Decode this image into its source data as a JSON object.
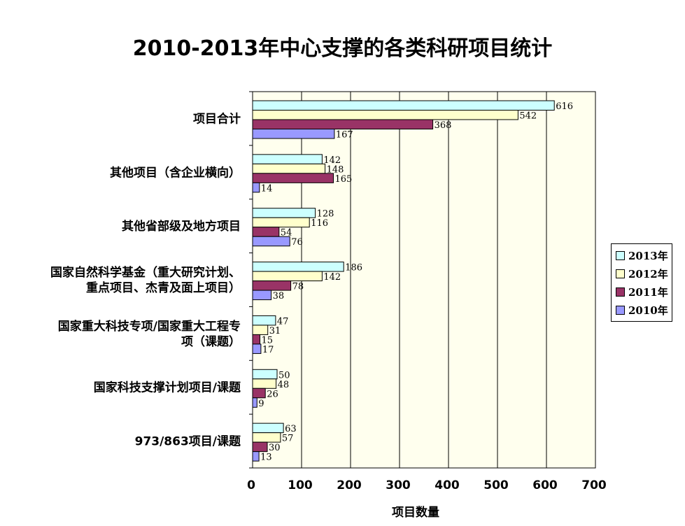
{
  "chart_data": {
    "type": "bar",
    "orientation": "horizontal",
    "title": "2010-2013年中心支撑的各类科研项目统计",
    "xlabel": "项目数量",
    "ylabel": "",
    "xlim": [
      0,
      700
    ],
    "xticks": [
      0,
      100,
      200,
      300,
      400,
      500,
      600,
      700
    ],
    "grid": true,
    "legend_position": "right",
    "categories": [
      [
        "项目合计"
      ],
      [
        "其他项目（含企业横向）"
      ],
      [
        "其他省部级及地方项目"
      ],
      [
        "国家自然科学基金（重大研究计划、",
        "重点项目、杰青及面上项目）"
      ],
      [
        "国家重大科技专项/国家重大工程专",
        "项（课题）"
      ],
      [
        "国家科技支撑计划项目/课题"
      ],
      [
        "973/863项目/课题"
      ]
    ],
    "series": [
      {
        "name": "2013年",
        "color": "#ccffff",
        "values": [
          616,
          142,
          128,
          186,
          47,
          50,
          63
        ]
      },
      {
        "name": "2012年",
        "color": "#ffffcc",
        "values": [
          542,
          148,
          116,
          142,
          31,
          48,
          57
        ]
      },
      {
        "name": "2011年",
        "color": "#993366",
        "values": [
          368,
          165,
          54,
          78,
          15,
          26,
          30
        ]
      },
      {
        "name": "2010年",
        "color": "#9999ff",
        "values": [
          167,
          14,
          76,
          38,
          17,
          9,
          13
        ]
      }
    ],
    "plot_background": "#ffffee"
  }
}
